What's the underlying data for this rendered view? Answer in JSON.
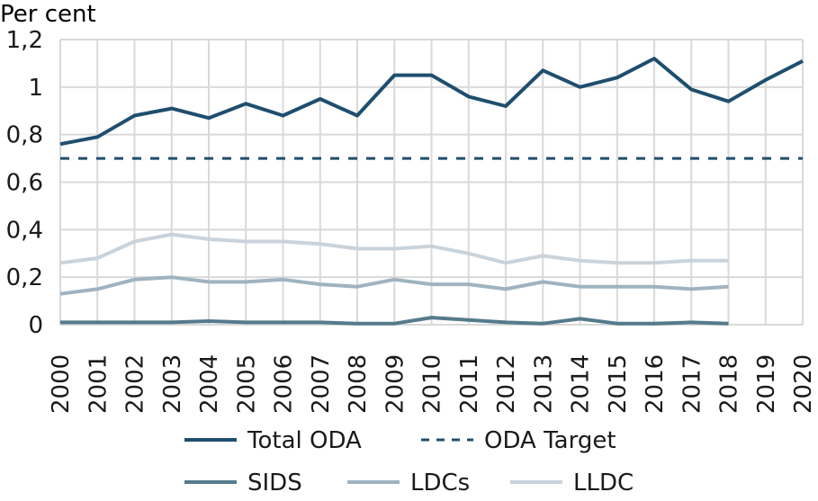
{
  "chart_data": {
    "type": "line",
    "ylabel": "Per cent",
    "ylim": [
      0,
      1.2
    ],
    "yticks": [
      0,
      0.2,
      0.4,
      0.6,
      0.8,
      1,
      1.2
    ],
    "ytick_labels": [
      "0",
      "0,2",
      "0,4",
      "0,6",
      "0,8",
      "1",
      "1,2"
    ],
    "categories": [
      "2000",
      "2001",
      "2002",
      "2003",
      "2004",
      "2005",
      "2006",
      "2007",
      "2008",
      "2009",
      "2010",
      "2011",
      "2012",
      "2013",
      "2014",
      "2015",
      "2016",
      "2017",
      "2018",
      "2019",
      "2020"
    ],
    "grid": true,
    "legend_position": "bottom",
    "series": [
      {
        "name": "Total ODA",
        "color": "#1f4e6e",
        "style": "solid",
        "values": [
          0.76,
          0.79,
          0.88,
          0.91,
          0.87,
          0.93,
          0.88,
          0.95,
          0.88,
          1.05,
          1.05,
          0.96,
          0.92,
          1.07,
          1.0,
          1.04,
          1.12,
          0.99,
          0.94,
          1.03,
          1.11
        ]
      },
      {
        "name": "ODA Target",
        "color": "#1f4e6e",
        "style": "dashed",
        "values": [
          0.7,
          0.7,
          0.7,
          0.7,
          0.7,
          0.7,
          0.7,
          0.7,
          0.7,
          0.7,
          0.7,
          0.7,
          0.7,
          0.7,
          0.7,
          0.7,
          0.7,
          0.7,
          0.7,
          0.7,
          0.7
        ]
      },
      {
        "name": "SIDS",
        "color": "#557a8c",
        "style": "solid",
        "values": [
          0.01,
          0.01,
          0.01,
          0.01,
          0.015,
          0.01,
          0.01,
          0.01,
          0.005,
          0.005,
          0.03,
          0.02,
          0.01,
          0.005,
          0.025,
          0.005,
          0.005,
          0.01,
          0.005,
          null,
          null
        ]
      },
      {
        "name": "LDCs",
        "color": "#9fb3c1",
        "style": "solid",
        "values": [
          0.13,
          0.15,
          0.19,
          0.2,
          0.18,
          0.18,
          0.19,
          0.17,
          0.16,
          0.19,
          0.17,
          0.17,
          0.15,
          0.18,
          0.16,
          0.16,
          0.16,
          0.15,
          0.16,
          null,
          null
        ]
      },
      {
        "name": "LLDC",
        "color": "#c9d3dc",
        "style": "solid",
        "values": [
          0.26,
          0.28,
          0.35,
          0.38,
          0.36,
          0.35,
          0.35,
          0.34,
          0.32,
          0.32,
          0.33,
          0.3,
          0.26,
          0.29,
          0.27,
          0.26,
          0.26,
          0.27,
          0.27,
          null,
          null
        ]
      }
    ]
  }
}
